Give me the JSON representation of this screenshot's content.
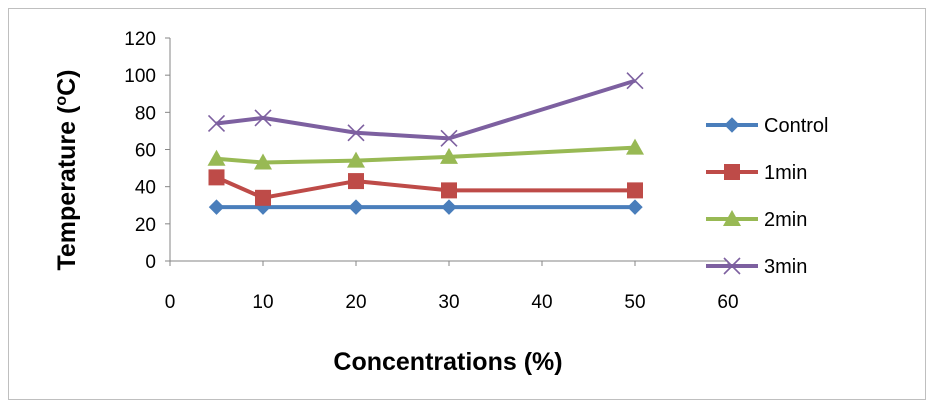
{
  "chart_data": {
    "type": "line",
    "title": "",
    "xlabel": "Concentrations (%)",
    "ylabel_main": "Temperature (",
    "ylabel_sup": "o",
    "ylabel_unit": "C)",
    "xlim": [
      0,
      60
    ],
    "ylim": [
      0,
      120
    ],
    "xticks": [
      "0",
      "10",
      "20",
      "30",
      "40",
      "50",
      "60"
    ],
    "yticks": [
      "0",
      "20",
      "40",
      "60",
      "80",
      "100",
      "120"
    ],
    "x": [
      5,
      10,
      20,
      30,
      50
    ],
    "grid": false,
    "legend_position": "right",
    "series": [
      {
        "name": "Control",
        "values": [
          29,
          29,
          29,
          29,
          29
        ],
        "color": "#4a7ebb",
        "marker": "diamond"
      },
      {
        "name": "1min",
        "values": [
          45,
          34,
          43,
          38,
          38
        ],
        "color": "#be4b48",
        "marker": "square"
      },
      {
        "name": "2min",
        "values": [
          55,
          53,
          54,
          56,
          61
        ],
        "color": "#98b954",
        "marker": "triangle"
      },
      {
        "name": "3min",
        "values": [
          74,
          77,
          69,
          66,
          97
        ],
        "color": "#7d60a0",
        "marker": "x"
      }
    ]
  }
}
